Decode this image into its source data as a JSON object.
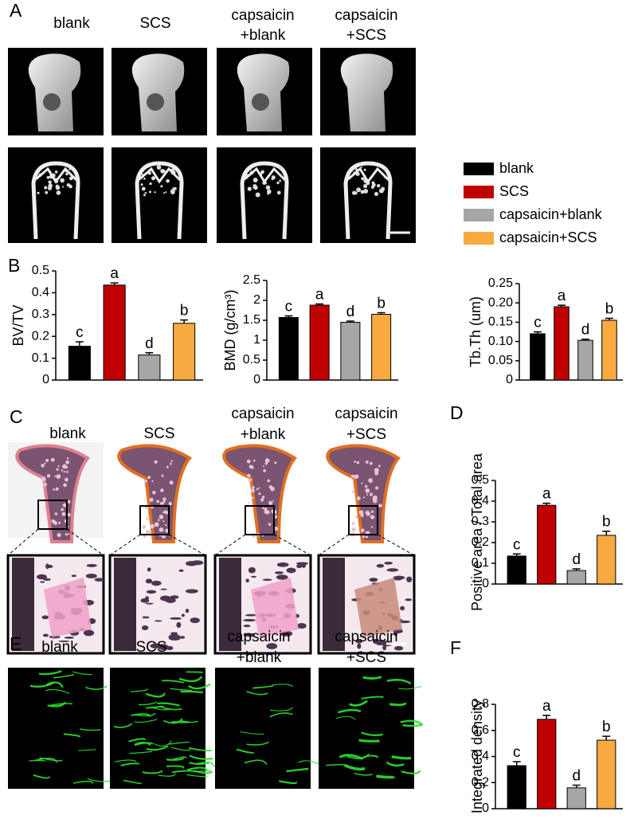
{
  "panel_A": {
    "letter": "A",
    "labels": [
      [
        "blank"
      ],
      [
        "SCS"
      ],
      [
        "capsaicin",
        "+blank"
      ],
      [
        "capsaicin",
        "+SCS"
      ]
    ]
  },
  "panel_B": "B",
  "panel_C": {
    "letter": "C",
    "labels": [
      [
        "blank"
      ],
      [
        "SCS"
      ],
      [
        "capsaicin",
        "+blank"
      ],
      [
        "capsaicin",
        "+SCS"
      ]
    ]
  },
  "panel_D": "D",
  "panel_E": {
    "letter": "E",
    "labels": [
      [
        "blank"
      ],
      [
        "SCS"
      ],
      [
        "capsaicin",
        "+blank"
      ],
      [
        "capsaicin",
        "+SCS"
      ]
    ]
  },
  "panel_F": "F",
  "legend": [
    {
      "name": "blank",
      "color": "#000000"
    },
    {
      "name": "SCS",
      "color": "#c00000"
    },
    {
      "name": "capsaicin+blank",
      "color": "#a6a6a6"
    },
    {
      "name": "capsaicin+SCS",
      "color": "#f8a940"
    }
  ],
  "chart_data": [
    {
      "type": "bar",
      "ylabel": "BV/TV",
      "values": [
        0.155,
        0.435,
        0.115,
        0.26
      ],
      "errors": [
        0.02,
        0.01,
        0.01,
        0.015
      ],
      "annotations": [
        "c",
        "a",
        "d",
        "b"
      ],
      "ylim": [
        0,
        0.5
      ],
      "yticks": [
        0,
        0.1,
        0.2,
        0.3,
        0.4,
        0.5
      ]
    },
    {
      "type": "bar",
      "ylabel": "BMD (g/cm³)",
      "values": [
        1.57,
        1.88,
        1.45,
        1.65
      ],
      "errors": [
        0.04,
        0.03,
        0.03,
        0.04
      ],
      "annotations": [
        "c",
        "a",
        "d",
        "b"
      ],
      "ylim": [
        0,
        2.5
      ],
      "yticks": [
        0,
        0.5,
        1,
        1.5,
        2,
        2.5
      ]
    },
    {
      "type": "bar",
      "ylabel": "Tb.Th (um)",
      "values": [
        0.12,
        0.19,
        0.103,
        0.155
      ],
      "errors": [
        0.005,
        0.004,
        0.003,
        0.005
      ],
      "annotations": [
        "c",
        "a",
        "d",
        "b"
      ],
      "ylim": [
        0,
        0.25
      ],
      "yticks": [
        0,
        0.05,
        {
          "value": 0.1,
          "label": "0.10"
        },
        0.15,
        {
          "value": 0.2,
          "label": "0.20"
        },
        0.25
      ]
    },
    {
      "type": "bar",
      "ylabel": "Positive area / Total area",
      "values": [
        0.135,
        0.38,
        0.065,
        0.235
      ],
      "errors": [
        0.01,
        0.01,
        0.008,
        0.02
      ],
      "annotations": [
        "c",
        "a",
        "d",
        "b"
      ],
      "ylim": [
        0,
        0.5
      ],
      "yticks": [
        0,
        0.1,
        0.2,
        0.3,
        0.4,
        0.5
      ]
    },
    {
      "type": "bar",
      "ylabel": "Integrated density",
      "values": [
        0.33,
        0.685,
        0.16,
        0.525
      ],
      "errors": [
        0.03,
        0.03,
        0.02,
        0.03
      ],
      "annotations": [
        "c",
        "a",
        "d",
        "b"
      ],
      "ylim": [
        0,
        0.8
      ],
      "yticks": [
        0,
        0.2,
        0.4,
        0.6,
        0.8
      ]
    }
  ]
}
